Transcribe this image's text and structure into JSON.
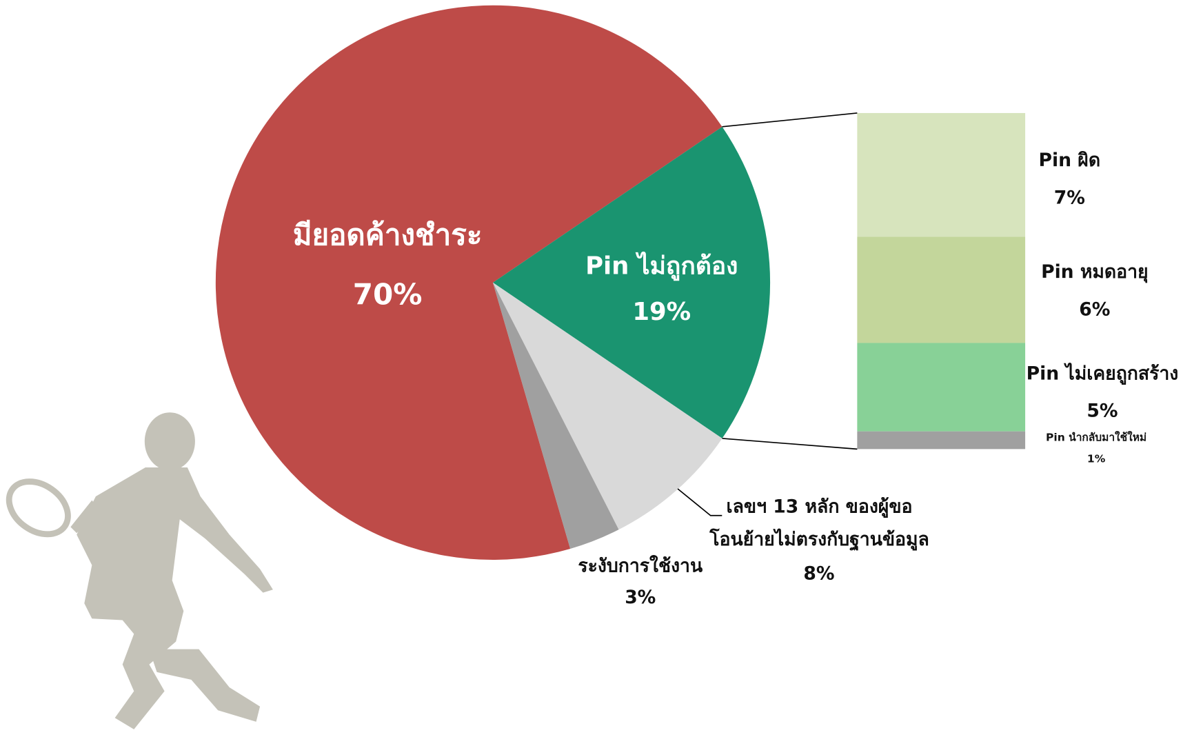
{
  "chart_data": {
    "type": "pie",
    "categories": [
      "มียอดค้างชำระ",
      "Pin ไม่ถูกต้อง",
      "เลขฯ 13 หลัก ของผู้ขอ\nโอนย้ายไม่ตรงกับฐานข้อมูล",
      "ระงับการใช้งาน"
    ],
    "values": [
      70,
      19,
      8,
      3
    ],
    "value_labels": [
      "70%",
      "19%",
      "8%",
      "3%"
    ],
    "colors": [
      "#be4b48",
      "#1a9470",
      "#d9d9d9",
      "#a0a0a0"
    ],
    "breakdown": {
      "categories": [
        "Pin ผิด",
        "Pin หมดอายุ",
        "Pin ไม่เคยถูกสร้าง",
        "Pin นำกลับมาใช้ใหม่"
      ],
      "values": [
        7,
        6,
        5,
        1
      ],
      "value_labels": [
        "7%",
        "6%",
        "5%",
        "1%"
      ],
      "colors": [
        "#d7e4bd",
        "#c3d69b",
        "#88d197",
        "#a0a0a0"
      ]
    }
  }
}
